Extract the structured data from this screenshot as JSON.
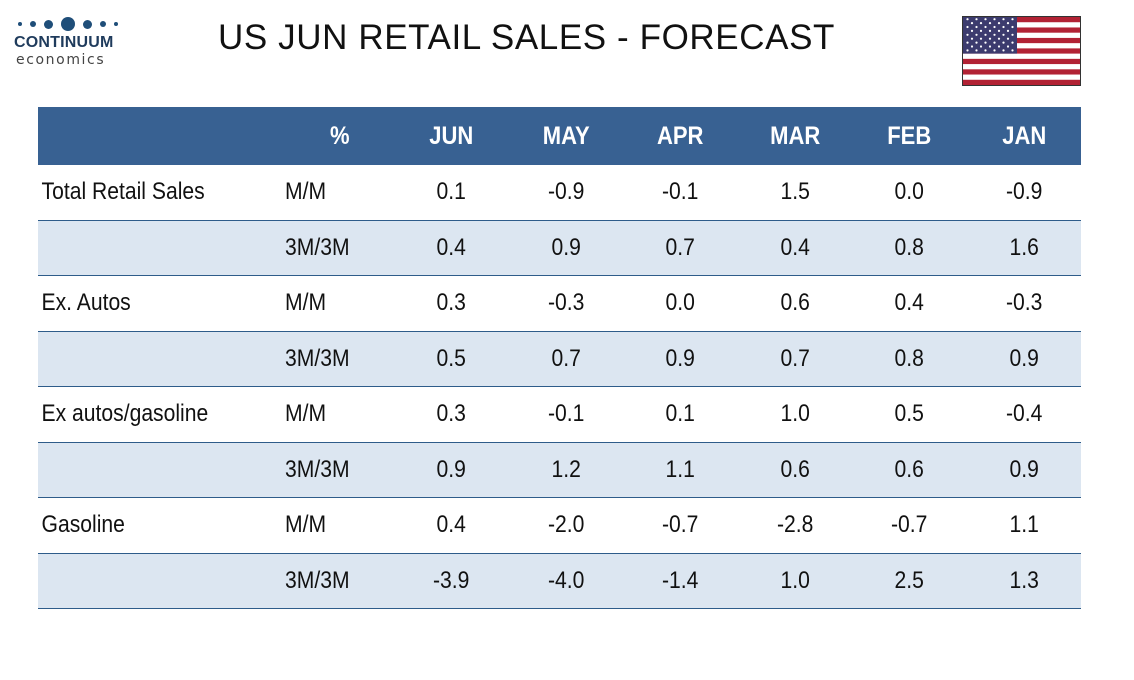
{
  "logo": {
    "name": "CONTINUUM",
    "sub": "economics"
  },
  "title": "US JUN RETAIL SALES - FORECAST",
  "flag_icon": "us-flag-icon",
  "colors": {
    "header_bg": "#386192",
    "shade_bg": "#dce6f1",
    "rule": "#2e5c8a",
    "header_text": "#ffffff"
  },
  "table": {
    "headers": [
      "",
      "%",
      "JUN",
      "MAY",
      "APR",
      "MAR",
      "FEB",
      "JAN"
    ],
    "rows": [
      {
        "label": "Total Retail Sales",
        "unit": "M/M",
        "values": [
          "0.1",
          "-0.9",
          "-0.1",
          "1.5",
          "0.0",
          "-0.9"
        ]
      },
      {
        "label": "",
        "unit": "3M/3M",
        "values": [
          "0.4",
          "0.9",
          "0.7",
          "0.4",
          "0.8",
          "1.6"
        ]
      },
      {
        "label": "Ex. Autos",
        "unit": "M/M",
        "values": [
          "0.3",
          "-0.3",
          "0.0",
          "0.6",
          "0.4",
          "-0.3"
        ]
      },
      {
        "label": "",
        "unit": "3M/3M",
        "values": [
          "0.5",
          "0.7",
          "0.9",
          "0.7",
          "0.8",
          "0.9"
        ]
      },
      {
        "label": "Ex autos/gasoline",
        "unit": "M/M",
        "values": [
          "0.3",
          "-0.1",
          "0.1",
          "1.0",
          "0.5",
          "-0.4"
        ]
      },
      {
        "label": "",
        "unit": "3M/3M",
        "values": [
          "0.9",
          "1.2",
          "1.1",
          "0.6",
          "0.6",
          "0.9"
        ]
      },
      {
        "label": "Gasoline",
        "unit": "M/M",
        "values": [
          "0.4",
          "-2.0",
          "-0.7",
          "-2.8",
          "-0.7",
          "1.1"
        ]
      },
      {
        "label": "",
        "unit": "3M/3M",
        "values": [
          "-3.9",
          "-4.0",
          "-1.4",
          "1.0",
          "2.5",
          "1.3"
        ]
      }
    ]
  }
}
